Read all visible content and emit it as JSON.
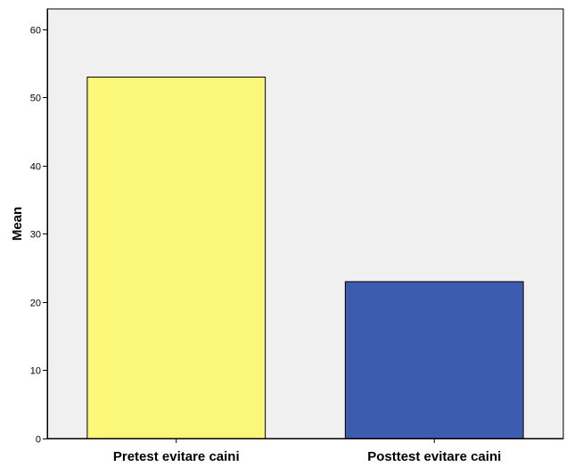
{
  "chart_data": {
    "type": "bar",
    "categories": [
      "Pretest evitare caini",
      "Posttest evitare caini"
    ],
    "values": [
      53,
      23
    ],
    "colors": [
      "#FBF779",
      "#3D5BAF"
    ],
    "title": "",
    "xlabel": "",
    "ylabel": "Mean",
    "ylim": [
      0,
      63
    ],
    "yticks": [
      0,
      10,
      20,
      30,
      40,
      50,
      60
    ],
    "grid": false,
    "plot_background": "#F0F0F0",
    "legend": "none"
  }
}
